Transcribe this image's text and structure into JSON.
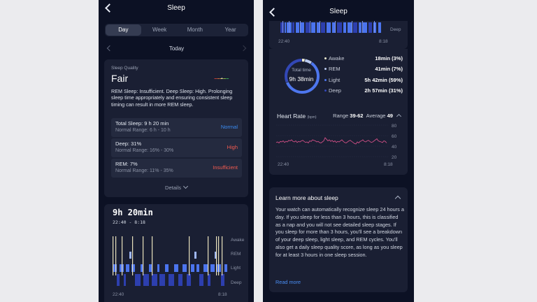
{
  "left": {
    "header": {
      "title": "Sleep"
    },
    "tabs": [
      "Day",
      "Week",
      "Month",
      "Year"
    ],
    "active_tab": "Day",
    "date_label": "Today",
    "quality": {
      "label": "Sleep Quality",
      "value": "Fair",
      "scale_colors": [
        "#e0433d",
        "#e8823a",
        "#f2c94c",
        "#9ccc4a",
        "#3dbd5c"
      ],
      "description": "REM Sleep: Insufficient. Deep Sleep: High. Prolonging sleep time appropriately and ensuring consistent sleep timing can result in more REM sleep.",
      "metrics": [
        {
          "name": "Total Sleep: 9 h 20 min",
          "range": "Normal Range: 6 h - 10 h",
          "status": "Normal",
          "status_color": "#3b8cf2"
        },
        {
          "name": "Deep: 31%",
          "range": "Normal Range: 16% - 30%",
          "status": "High",
          "status_color": "#f25b50"
        },
        {
          "name": "REM: 7%",
          "range": "Normal Range: 11% - 35%",
          "status": "Insufficient",
          "status_color": "#f25b50"
        }
      ],
      "details_label": "Details"
    },
    "sleep_card": {
      "total": "9h 20min",
      "window": "22:40 - 8:18",
      "stage_labels": [
        "Awake",
        "REM",
        "Light",
        "Deep"
      ],
      "start_time": "22:40",
      "end_time": "8:18"
    }
  },
  "right": {
    "header": {
      "title": "Sleep"
    },
    "hypnogram": {
      "deep_label": "Deep",
      "start_time": "22:40",
      "end_time": "8:18"
    },
    "ring": {
      "label": "Total time",
      "value": "9h 38min",
      "stages": [
        {
          "name": "Awake",
          "value": "18min",
          "pct": "(3%)",
          "color": "#f0ecd0",
          "fraction": 0.03
        },
        {
          "name": "REM",
          "value": "41min",
          "pct": "(7%)",
          "color": "#b9c9ee",
          "fraction": 0.07
        },
        {
          "name": "Light",
          "value": "5h 42min",
          "pct": "(59%)",
          "color": "#4d76ee",
          "fraction": 0.59
        },
        {
          "name": "Deep",
          "value": "2h 57min",
          "pct": "(31%)",
          "color": "#3247b6",
          "fraction": 0.31
        }
      ]
    },
    "heart_rate": {
      "title": "Heart Rate",
      "unit": "(bpm)",
      "range_label": "Range",
      "range_value": "39-62",
      "average_label": "Average",
      "average_value": "49",
      "y_ticks": [
        "80",
        "60",
        "40",
        "20"
      ],
      "start_time": "22:40",
      "end_time": "8:18",
      "line_color": "#d14f86"
    },
    "learn": {
      "title": "Learn more about sleep",
      "body": "Your watch can automatically recognize sleep 24 hours a day. If you sleep for less than 3 hours, this is classified as a nap and you will not see detailed sleep stages. If you sleep for more than 3 hours, you'll see a breakdown of your deep sleep, light sleep, and REM cycles. You'll also get a daily sleep quality score, as long as you sleep for at least 3 hours in one sleep session.",
      "read_more": "Read more"
    }
  }
}
